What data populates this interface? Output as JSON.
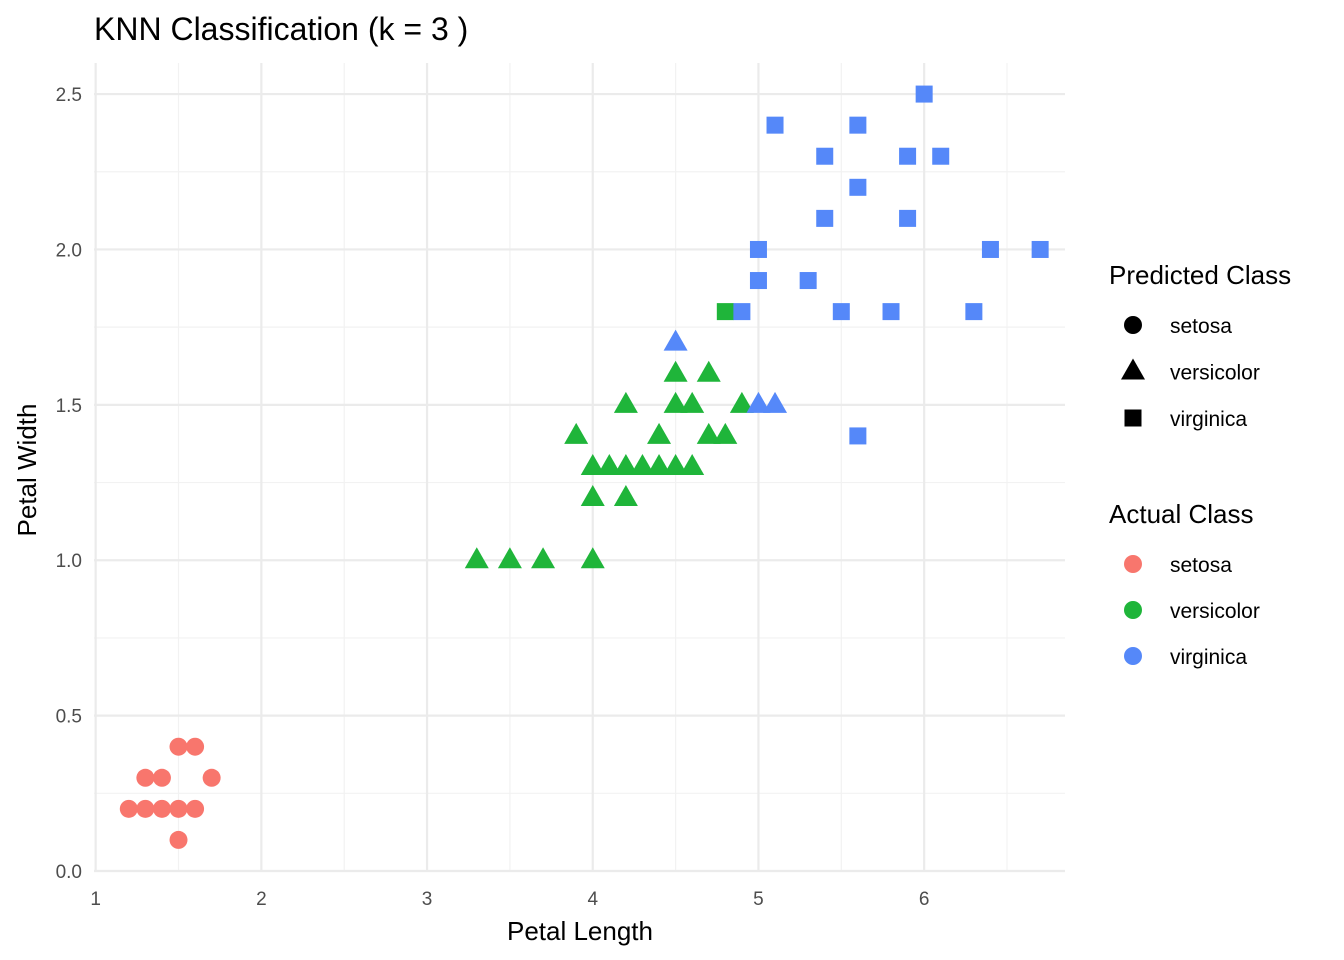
{
  "chart_data": {
    "type": "scatter",
    "title": "KNN Classification (k = 3 )",
    "xlabel": "Petal Length",
    "ylabel": "Petal Width",
    "xlim": [
      0.99,
      6.85
    ],
    "ylim": [
      0.0,
      2.6
    ],
    "x_ticks": [
      1,
      2,
      3,
      4,
      5,
      6
    ],
    "x_tick_labels": [
      "1",
      "2",
      "3",
      "4",
      "5",
      "6"
    ],
    "y_ticks": [
      0.0,
      0.5,
      1.0,
      1.5,
      2.0,
      2.5
    ],
    "y_tick_labels": [
      "0.0",
      "0.5",
      "1.0",
      "1.5",
      "2.0",
      "2.5"
    ],
    "grid": true,
    "legend_position": "right",
    "shape_legend": {
      "title": "Predicted Class",
      "entries": [
        {
          "label": "setosa",
          "shape": "circle"
        },
        {
          "label": "versicolor",
          "shape": "triangle"
        },
        {
          "label": "virginica",
          "shape": "square"
        }
      ]
    },
    "color_legend": {
      "title": "Actual Class",
      "entries": [
        {
          "label": "setosa",
          "color": "#F8766D"
        },
        {
          "label": "versicolor",
          "color": "#1FB53A"
        },
        {
          "label": "virginica",
          "color": "#5588F9"
        }
      ]
    },
    "points": [
      {
        "x": 1.2,
        "y": 0.2,
        "actual": "setosa",
        "predicted": "setosa"
      },
      {
        "x": 1.3,
        "y": 0.2,
        "actual": "setosa",
        "predicted": "setosa"
      },
      {
        "x": 1.4,
        "y": 0.2,
        "actual": "setosa",
        "predicted": "setosa"
      },
      {
        "x": 1.5,
        "y": 0.2,
        "actual": "setosa",
        "predicted": "setosa"
      },
      {
        "x": 1.6,
        "y": 0.2,
        "actual": "setosa",
        "predicted": "setosa"
      },
      {
        "x": 1.3,
        "y": 0.3,
        "actual": "setosa",
        "predicted": "setosa"
      },
      {
        "x": 1.4,
        "y": 0.3,
        "actual": "setosa",
        "predicted": "setosa"
      },
      {
        "x": 1.7,
        "y": 0.3,
        "actual": "setosa",
        "predicted": "setosa"
      },
      {
        "x": 1.5,
        "y": 0.4,
        "actual": "setosa",
        "predicted": "setosa"
      },
      {
        "x": 1.6,
        "y": 0.4,
        "actual": "setosa",
        "predicted": "setosa"
      },
      {
        "x": 1.5,
        "y": 0.1,
        "actual": "setosa",
        "predicted": "setosa"
      },
      {
        "x": 3.3,
        "y": 1.0,
        "actual": "versicolor",
        "predicted": "versicolor"
      },
      {
        "x": 3.5,
        "y": 1.0,
        "actual": "versicolor",
        "predicted": "versicolor"
      },
      {
        "x": 3.7,
        "y": 1.0,
        "actual": "versicolor",
        "predicted": "versicolor"
      },
      {
        "x": 4.0,
        "y": 1.0,
        "actual": "versicolor",
        "predicted": "versicolor"
      },
      {
        "x": 4.0,
        "y": 1.2,
        "actual": "versicolor",
        "predicted": "versicolor"
      },
      {
        "x": 4.2,
        "y": 1.2,
        "actual": "versicolor",
        "predicted": "versicolor"
      },
      {
        "x": 4.0,
        "y": 1.3,
        "actual": "versicolor",
        "predicted": "versicolor"
      },
      {
        "x": 4.1,
        "y": 1.3,
        "actual": "versicolor",
        "predicted": "versicolor"
      },
      {
        "x": 4.2,
        "y": 1.3,
        "actual": "versicolor",
        "predicted": "versicolor"
      },
      {
        "x": 4.3,
        "y": 1.3,
        "actual": "versicolor",
        "predicted": "versicolor"
      },
      {
        "x": 4.4,
        "y": 1.3,
        "actual": "versicolor",
        "predicted": "versicolor"
      },
      {
        "x": 4.5,
        "y": 1.3,
        "actual": "versicolor",
        "predicted": "versicolor"
      },
      {
        "x": 4.6,
        "y": 1.3,
        "actual": "versicolor",
        "predicted": "versicolor"
      },
      {
        "x": 3.9,
        "y": 1.4,
        "actual": "versicolor",
        "predicted": "versicolor"
      },
      {
        "x": 4.4,
        "y": 1.4,
        "actual": "versicolor",
        "predicted": "versicolor"
      },
      {
        "x": 4.7,
        "y": 1.4,
        "actual": "versicolor",
        "predicted": "versicolor"
      },
      {
        "x": 4.8,
        "y": 1.4,
        "actual": "versicolor",
        "predicted": "versicolor"
      },
      {
        "x": 4.2,
        "y": 1.5,
        "actual": "versicolor",
        "predicted": "versicolor"
      },
      {
        "x": 4.5,
        "y": 1.5,
        "actual": "versicolor",
        "predicted": "versicolor"
      },
      {
        "x": 4.6,
        "y": 1.5,
        "actual": "versicolor",
        "predicted": "versicolor"
      },
      {
        "x": 4.9,
        "y": 1.5,
        "actual": "versicolor",
        "predicted": "versicolor"
      },
      {
        "x": 4.5,
        "y": 1.6,
        "actual": "versicolor",
        "predicted": "versicolor"
      },
      {
        "x": 4.7,
        "y": 1.6,
        "actual": "versicolor",
        "predicted": "versicolor"
      },
      {
        "x": 4.8,
        "y": 1.8,
        "actual": "versicolor",
        "predicted": "virginica"
      },
      {
        "x": 4.5,
        "y": 1.7,
        "actual": "virginica",
        "predicted": "versicolor"
      },
      {
        "x": 5.0,
        "y": 1.5,
        "actual": "virginica",
        "predicted": "versicolor"
      },
      {
        "x": 5.1,
        "y": 1.5,
        "actual": "virginica",
        "predicted": "versicolor"
      },
      {
        "x": 4.9,
        "y": 1.8,
        "actual": "virginica",
        "predicted": "virginica"
      },
      {
        "x": 5.5,
        "y": 1.8,
        "actual": "virginica",
        "predicted": "virginica"
      },
      {
        "x": 5.8,
        "y": 1.8,
        "actual": "virginica",
        "predicted": "virginica"
      },
      {
        "x": 6.3,
        "y": 1.8,
        "actual": "virginica",
        "predicted": "virginica"
      },
      {
        "x": 5.0,
        "y": 1.9,
        "actual": "virginica",
        "predicted": "virginica"
      },
      {
        "x": 5.3,
        "y": 1.9,
        "actual": "virginica",
        "predicted": "virginica"
      },
      {
        "x": 5.0,
        "y": 2.0,
        "actual": "virginica",
        "predicted": "virginica"
      },
      {
        "x": 6.4,
        "y": 2.0,
        "actual": "virginica",
        "predicted": "virginica"
      },
      {
        "x": 6.7,
        "y": 2.0,
        "actual": "virginica",
        "predicted": "virginica"
      },
      {
        "x": 5.4,
        "y": 2.1,
        "actual": "virginica",
        "predicted": "virginica"
      },
      {
        "x": 5.9,
        "y": 2.1,
        "actual": "virginica",
        "predicted": "virginica"
      },
      {
        "x": 5.6,
        "y": 2.2,
        "actual": "virginica",
        "predicted": "virginica"
      },
      {
        "x": 5.4,
        "y": 2.3,
        "actual": "virginica",
        "predicted": "virginica"
      },
      {
        "x": 5.9,
        "y": 2.3,
        "actual": "virginica",
        "predicted": "virginica"
      },
      {
        "x": 6.1,
        "y": 2.3,
        "actual": "virginica",
        "predicted": "virginica"
      },
      {
        "x": 5.1,
        "y": 2.4,
        "actual": "virginica",
        "predicted": "virginica"
      },
      {
        "x": 5.6,
        "y": 2.4,
        "actual": "virginica",
        "predicted": "virginica"
      },
      {
        "x": 6.0,
        "y": 2.5,
        "actual": "virginica",
        "predicted": "virginica"
      },
      {
        "x": 5.6,
        "y": 1.4,
        "actual": "virginica",
        "predicted": "virginica"
      }
    ]
  }
}
